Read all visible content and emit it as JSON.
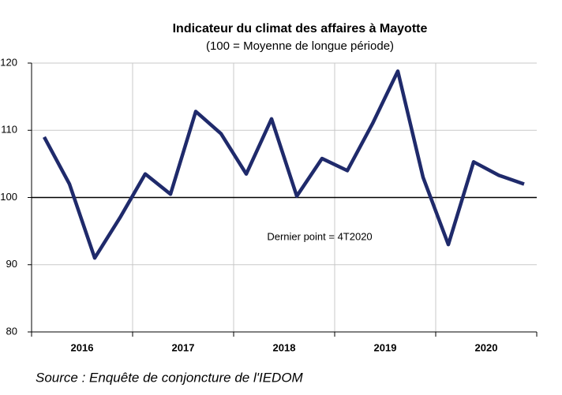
{
  "chart_data": {
    "type": "line",
    "title": "Indicateur du climat des affaires à Mayotte",
    "subtitle": "(100 = Moyenne de longue période)",
    "years": [
      "2016",
      "2017",
      "2018",
      "2019",
      "2020"
    ],
    "values": [
      109,
      102,
      91,
      97,
      103.5,
      100.5,
      112.8,
      109.5,
      103.5,
      111.7,
      100.2,
      105.8,
      104,
      111,
      118.8,
      103,
      93,
      105.3,
      103.3,
      102
    ],
    "color": "#1f2a6b",
    "ylim": [
      80,
      120
    ],
    "yticks": [
      80,
      90,
      100,
      110,
      120
    ],
    "reference": 100,
    "grid": true,
    "annotation": "Dernier point = 4T2020",
    "source": "Source : Enquête de conjoncture de l'IEDOM"
  }
}
